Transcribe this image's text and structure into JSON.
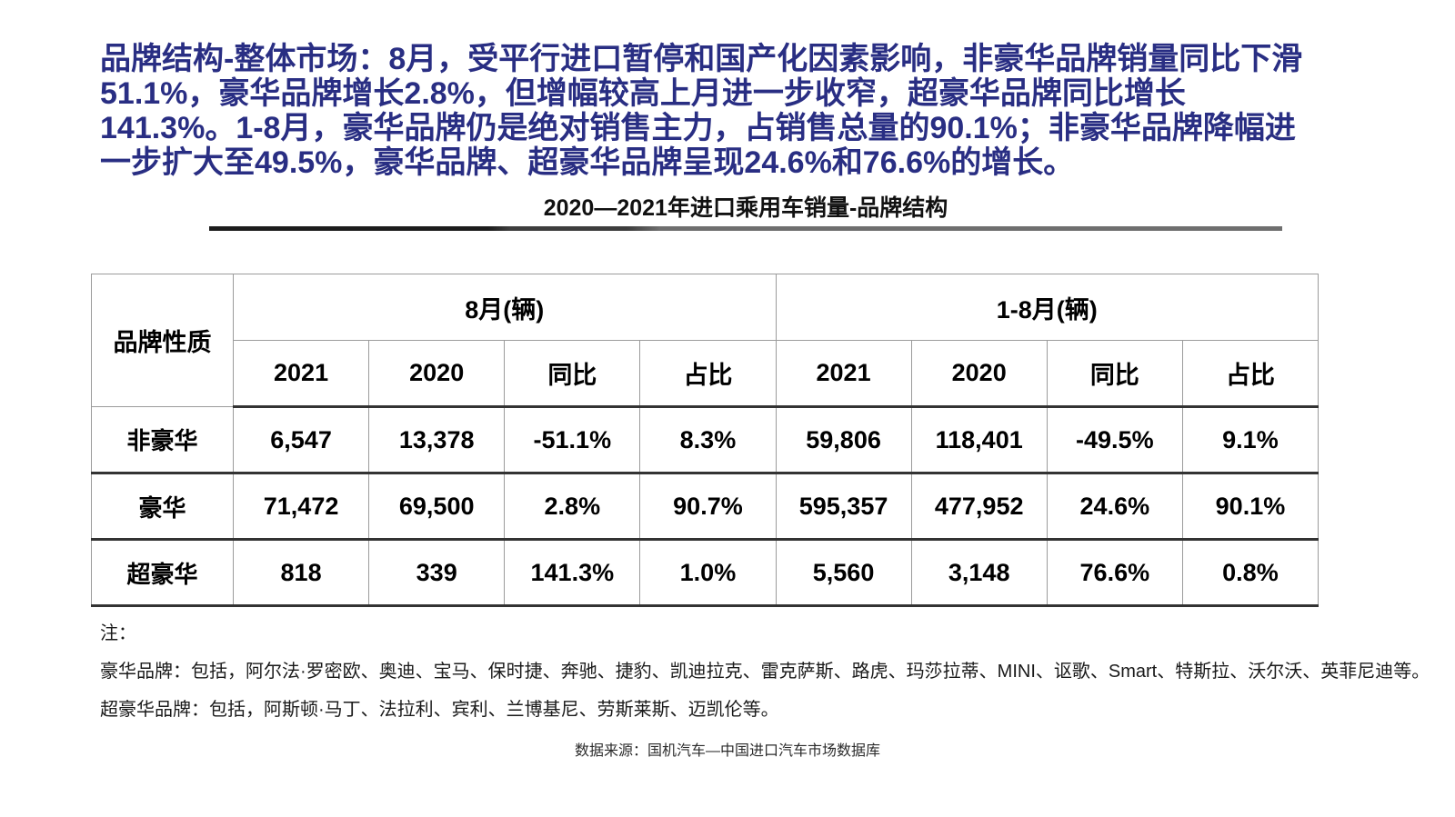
{
  "page": {
    "background": "#ffffff",
    "headline_color": "#292e83",
    "table_border_dark": "#333333",
    "table_border_light": "#9b9b9b"
  },
  "headline": {
    "lines": [
      "品牌结构-整体市场：8月，受平行进口暂停和国产化因素影响，非豪华品牌销量同比下滑",
      "51.1%，豪华品牌增长2.8%，但增幅较高上月进一步收窄，超豪华品牌同比增长",
      "141.3%。1-8月，豪华品牌仍是绝对销售主力，占销售总量的90.1%；非豪华品牌降幅进",
      "一步扩大至49.5%，豪华品牌、超豪华品牌呈现24.6%和76.6%的增长。"
    ],
    "full_text": "品牌结构-整体市场：8月，受平行进口暂停和国产化因素影响，非豪华品牌销量同比下滑51.1%，豪华品牌增长2.8%，但增幅较高上月进一步收窄，超豪华品牌同比增长141.3%。1-8月，豪华品牌仍是绝对销售主力，占销售总量的90.1%；非豪华品牌降幅进一步扩大至49.5%，豪华品牌、超豪华品牌呈现24.6%和76.6%的增长。"
  },
  "chart_data": {
    "type": "table",
    "title": "2020—2021年进口乘用车销量-品牌结构",
    "row_header_label": "品牌性质",
    "column_groups": [
      {
        "label": "8月(辆)",
        "columns": [
          "2021",
          "2020",
          "同比",
          "占比"
        ]
      },
      {
        "label": "1-8月(辆)",
        "columns": [
          "2021",
          "2020",
          "同比",
          "占比"
        ]
      }
    ],
    "rows": [
      {
        "label": "非豪华",
        "values": [
          "6,547",
          "13,378",
          "-51.1%",
          "8.3%",
          "59,806",
          "118,401",
          "-49.5%",
          "9.1%"
        ]
      },
      {
        "label": "豪华",
        "values": [
          "71,472",
          "69,500",
          "2.8%",
          "90.7%",
          "595,357",
          "477,952",
          "24.6%",
          "90.1%"
        ]
      },
      {
        "label": "超豪华",
        "values": [
          "818",
          "339",
          "141.3%",
          "1.0%",
          "5,560",
          "3,148",
          "76.6%",
          "0.8%"
        ]
      }
    ]
  },
  "notes": {
    "label": "注：",
    "lines": [
      "豪华品牌：包括，阿尔法·罗密欧、奥迪、宝马、保时捷、奔驰、捷豹、凯迪拉克、雷克萨斯、路虎、玛莎拉蒂、MINI、讴歌、Smart、特斯拉、沃尔沃、英菲尼迪等。",
      "超豪华品牌：包括，阿斯顿·马丁、法拉利、宾利、兰博基尼、劳斯莱斯、迈凯伦等。"
    ]
  },
  "source": {
    "text": "数据来源：国机汽车—中国进口汽车市场数据库"
  }
}
